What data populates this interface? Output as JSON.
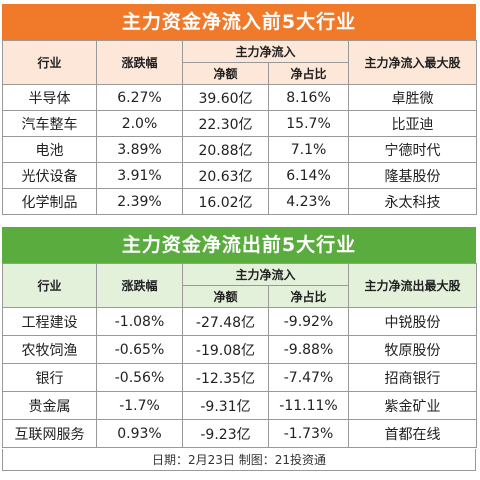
{
  "inflow": {
    "title": "主力资金净流入前5大行业",
    "headers": {
      "industry": "行业",
      "change": "涨跌幅",
      "flow_group": "主力净流入",
      "net_amount": "净额",
      "net_ratio": "净占比",
      "top_stock": "主力净流入最大股"
    },
    "rows": [
      {
        "industry": "半导体",
        "change": "6.27%",
        "net_amount": "39.60亿",
        "net_ratio": "8.16%",
        "top_stock": "卓胜微"
      },
      {
        "industry": "汽车整车",
        "change": "2.0%",
        "net_amount": "22.30亿",
        "net_ratio": "15.7%",
        "top_stock": "比亚迪"
      },
      {
        "industry": "电池",
        "change": "3.89%",
        "net_amount": "20.88亿",
        "net_ratio": "7.1%",
        "top_stock": "宁德时代"
      },
      {
        "industry": "光伏设备",
        "change": "3.91%",
        "net_amount": "20.63亿",
        "net_ratio": "6.14%",
        "top_stock": "隆基股份"
      },
      {
        "industry": "化学制品",
        "change": "2.39%",
        "net_amount": "16.02亿",
        "net_ratio": "4.23%",
        "top_stock": "永太科技"
      }
    ]
  },
  "outflow": {
    "title": "主力资金净流出前5大行业",
    "headers": {
      "industry": "行业",
      "change": "涨跌幅",
      "flow_group": "主力净流入",
      "net_amount": "净额",
      "net_ratio": "净占比",
      "top_stock": "主力净流出最大股"
    },
    "rows": [
      {
        "industry": "工程建设",
        "change": "-1.08%",
        "net_amount": "-27.48亿",
        "net_ratio": "-9.92%",
        "top_stock": "中锐股份"
      },
      {
        "industry": "农牧饲渔",
        "change": "-0.65%",
        "net_amount": "-19.08亿",
        "net_ratio": "-9.88%",
        "top_stock": "牧原股份"
      },
      {
        "industry": "银行",
        "change": "-0.56%",
        "net_amount": "-12.35亿",
        "net_ratio": "-7.47%",
        "top_stock": "招商银行"
      },
      {
        "industry": "贵金属",
        "change": "-1.7%",
        "net_amount": "-9.31亿",
        "net_ratio": "-11.11%",
        "top_stock": "紫金矿业"
      },
      {
        "industry": "互联网服务",
        "change": "0.93%",
        "net_amount": "-9.23亿",
        "net_ratio": "-1.73%",
        "top_stock": "首都在线"
      }
    ]
  },
  "footer": "日期：2月23日 制图：21投资通"
}
